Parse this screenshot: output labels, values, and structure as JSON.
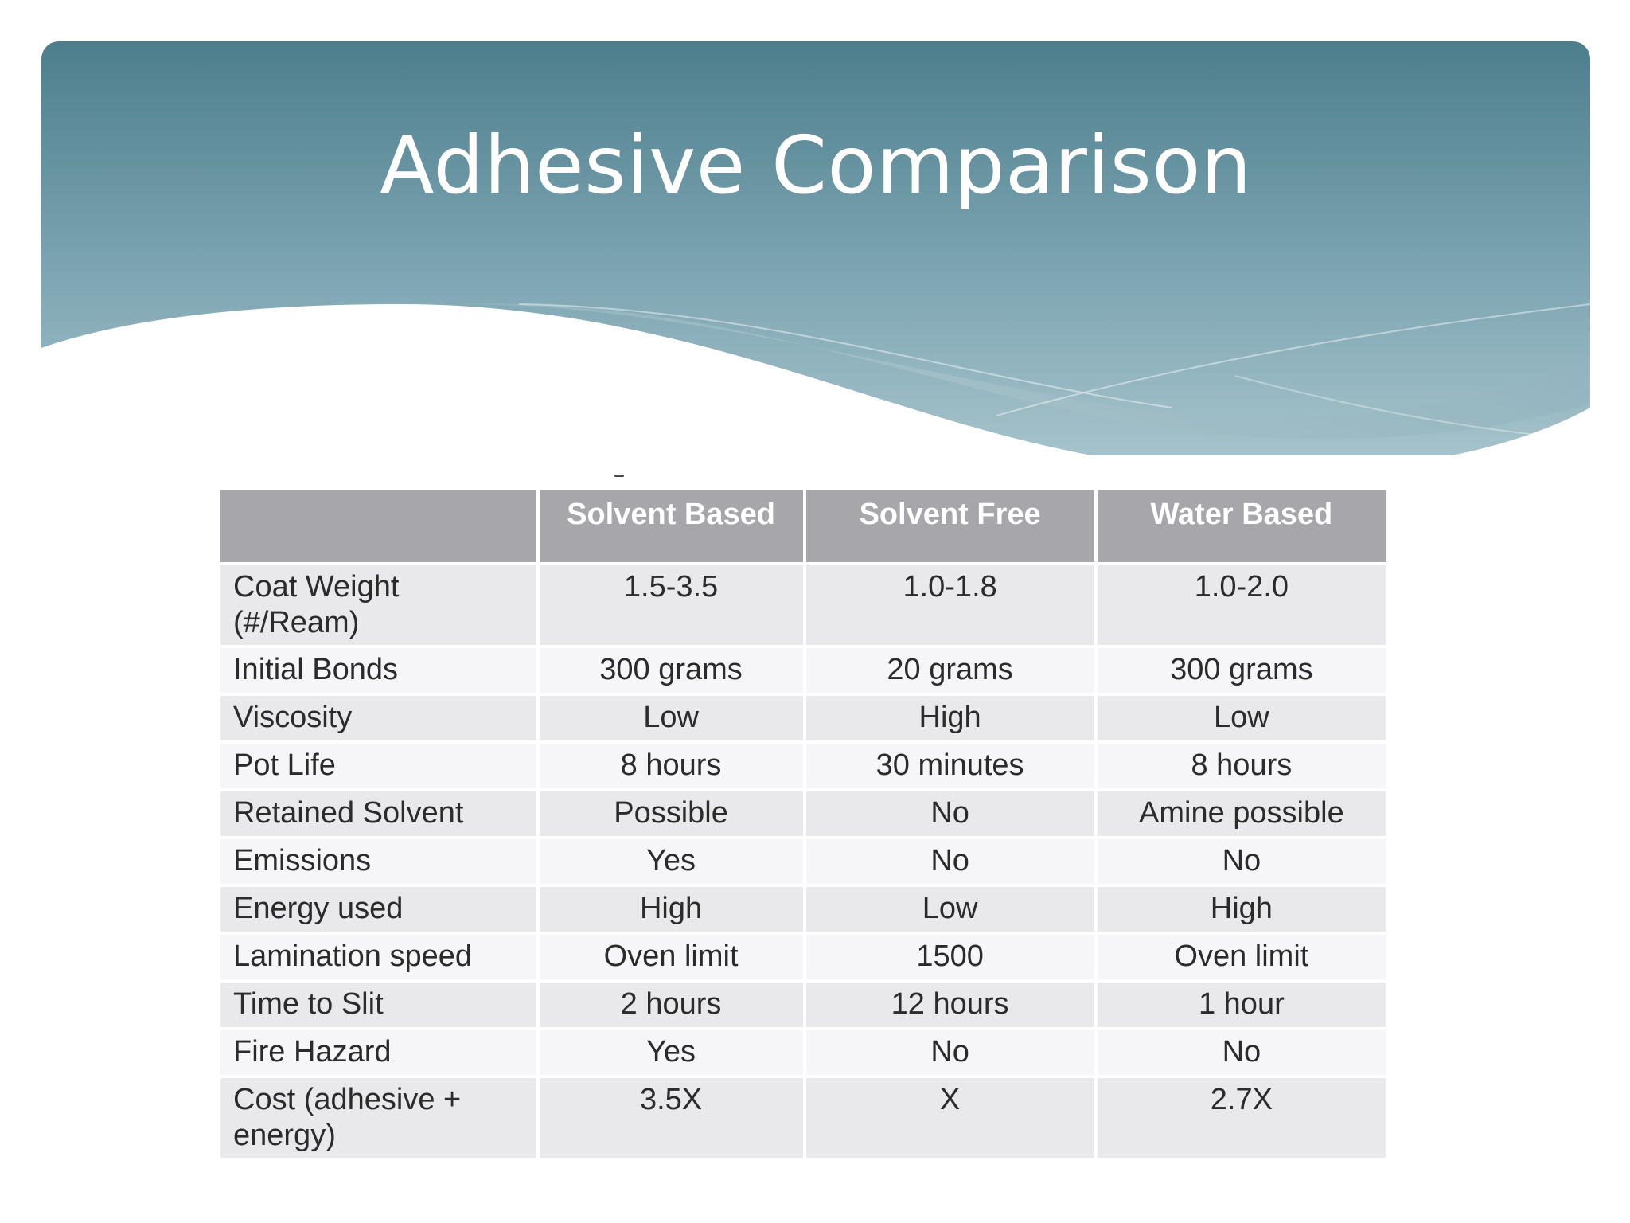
{
  "slide": {
    "title": "Adhesive Comparison",
    "colors": {
      "banner_top": "#4d7e8c",
      "banner_bottom": "#9dbdc7",
      "header_fill": "#a7a6aa",
      "row_odd": "#e9e9ec",
      "row_even": "#f6f6f8"
    }
  },
  "table": {
    "headers": [
      "",
      "Solvent Based",
      "Solvent Free",
      "Water Based"
    ],
    "rows": [
      [
        "Coat Weight (#/Ream)",
        "1.5-3.5",
        "1.0-1.8",
        "1.0-2.0"
      ],
      [
        "Initial Bonds",
        "300 grams",
        "20 grams",
        "300 grams"
      ],
      [
        "Viscosity",
        "Low",
        "High",
        "Low"
      ],
      [
        "Pot Life",
        "8 hours",
        "30 minutes",
        "8 hours"
      ],
      [
        "Retained Solvent",
        "Possible",
        "No",
        "Amine possible"
      ],
      [
        "Emissions",
        "Yes",
        "No",
        "No"
      ],
      [
        "Energy used",
        "High",
        "Low",
        "High"
      ],
      [
        "Lamination speed",
        "Oven limit",
        "1500",
        "Oven limit"
      ],
      [
        "Time to Slit",
        "2 hours",
        "12 hours",
        "1 hour"
      ],
      [
        "Fire Hazard",
        "Yes",
        "No",
        "No"
      ],
      [
        "Cost (adhesive + energy)",
        "3.5X",
        "X",
        "2.7X"
      ]
    ]
  }
}
